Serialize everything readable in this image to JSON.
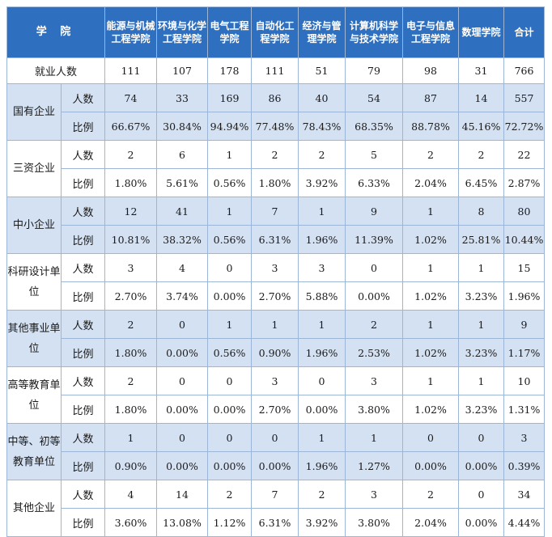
{
  "header": {
    "school_label": "学 院",
    "columns": [
      "能源与机械工程学院",
      "环境与化学工程学院",
      "电气工程学院",
      "自动化工程学院",
      "经济与管理学院",
      "计算机科学与技术学院",
      "电子与信息工程学院",
      "数理学院",
      "合计"
    ]
  },
  "total_row": {
    "label": "就业人数",
    "values": [
      "111",
      "107",
      "178",
      "111",
      "51",
      "79",
      "98",
      "31",
      "766"
    ]
  },
  "metric_labels": {
    "count": "人数",
    "ratio": "比例"
  },
  "groups": [
    {
      "name": "国有企业",
      "count": [
        "74",
        "33",
        "169",
        "86",
        "40",
        "54",
        "87",
        "14",
        "557"
      ],
      "ratio": [
        "66.67%",
        "30.84%",
        "94.94%",
        "77.48%",
        "78.43%",
        "68.35%",
        "88.78%",
        "45.16%",
        "72.72%"
      ]
    },
    {
      "name": "三资企业",
      "count": [
        "2",
        "6",
        "1",
        "2",
        "2",
        "5",
        "2",
        "2",
        "22"
      ],
      "ratio": [
        "1.80%",
        "5.61%",
        "0.56%",
        "1.80%",
        "3.92%",
        "6.33%",
        "2.04%",
        "6.45%",
        "2.87%"
      ]
    },
    {
      "name": "中小企业",
      "count": [
        "12",
        "41",
        "1",
        "7",
        "1",
        "9",
        "1",
        "8",
        "80"
      ],
      "ratio": [
        "10.81%",
        "38.32%",
        "0.56%",
        "6.31%",
        "1.96%",
        "11.39%",
        "1.02%",
        "25.81%",
        "10.44%"
      ]
    },
    {
      "name": "科研设计单位",
      "count": [
        "3",
        "4",
        "0",
        "3",
        "3",
        "0",
        "1",
        "1",
        "15"
      ],
      "ratio": [
        "2.70%",
        "3.74%",
        "0.00%",
        "2.70%",
        "5.88%",
        "0.00%",
        "1.02%",
        "3.23%",
        "1.96%"
      ]
    },
    {
      "name": "其他事业单位",
      "count": [
        "2",
        "0",
        "1",
        "1",
        "1",
        "2",
        "1",
        "1",
        "9"
      ],
      "ratio": [
        "1.80%",
        "0.00%",
        "0.56%",
        "0.90%",
        "1.96%",
        "2.53%",
        "1.02%",
        "3.23%",
        "1.17%"
      ]
    },
    {
      "name": "高等教育单位",
      "count": [
        "2",
        "0",
        "0",
        "3",
        "0",
        "3",
        "1",
        "1",
        "10"
      ],
      "ratio": [
        "1.80%",
        "0.00%",
        "0.00%",
        "2.70%",
        "0.00%",
        "3.80%",
        "1.02%",
        "3.23%",
        "1.31%"
      ]
    },
    {
      "name": "中等、初等教育单位",
      "count": [
        "1",
        "0",
        "0",
        "0",
        "1",
        "1",
        "0",
        "0",
        "3"
      ],
      "ratio": [
        "0.90%",
        "0.00%",
        "0.00%",
        "0.00%",
        "1.96%",
        "1.27%",
        "0.00%",
        "0.00%",
        "0.39%"
      ]
    },
    {
      "name": "其他企业",
      "count": [
        "4",
        "14",
        "2",
        "7",
        "2",
        "3",
        "2",
        "0",
        "34"
      ],
      "ratio": [
        "3.60%",
        "13.08%",
        "1.12%",
        "6.31%",
        "3.92%",
        "3.80%",
        "2.04%",
        "0.00%",
        "4.44%"
      ]
    }
  ],
  "colors": {
    "header_bg": "#2e6fc0",
    "shade_bg": "#d4e1f2",
    "border": "#9bb6d6"
  }
}
